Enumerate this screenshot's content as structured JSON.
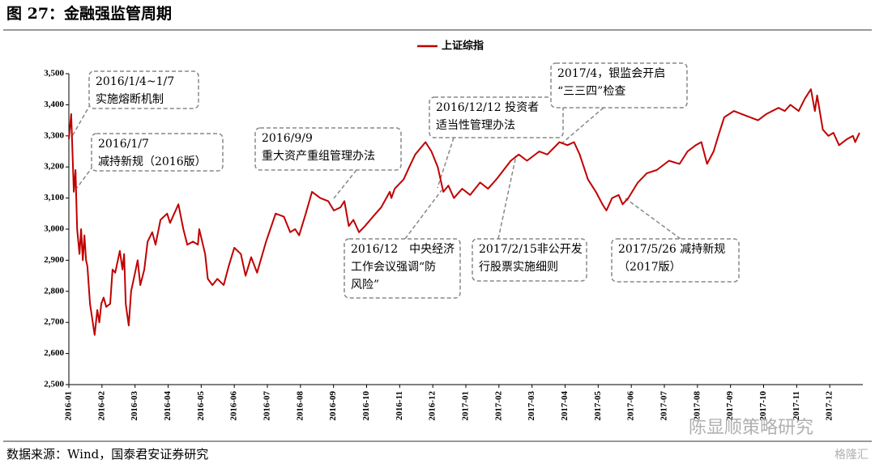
{
  "chart_data": {
    "type": "line",
    "title": "图 27：金融强监管周期",
    "source": "数据来源：Wind，国泰君安证券研究",
    "watermark": [
      "陈显顺策略研究",
      "格隆汇"
    ],
    "legend": "top",
    "xlim": [
      0,
      24
    ],
    "xticks": [
      {
        "value": 0,
        "label": "2016-01"
      },
      {
        "value": 1,
        "label": "2016-02"
      },
      {
        "value": 2,
        "label": "2016-03"
      },
      {
        "value": 3,
        "label": "2016-04"
      },
      {
        "value": 4,
        "label": "2016-05"
      },
      {
        "value": 5,
        "label": "2016-06"
      },
      {
        "value": 6,
        "label": "2016-07"
      },
      {
        "value": 7,
        "label": "2016-08"
      },
      {
        "value": 8,
        "label": "2016-09"
      },
      {
        "value": 9,
        "label": "2016-10"
      },
      {
        "value": 10,
        "label": "2016-11"
      },
      {
        "value": 11,
        "label": "2016-12"
      },
      {
        "value": 12,
        "label": "2017-01"
      },
      {
        "value": 13,
        "label": "2017-02"
      },
      {
        "value": 14,
        "label": "2017-03"
      },
      {
        "value": 15,
        "label": "2017-04"
      },
      {
        "value": 16,
        "label": "2017-05"
      },
      {
        "value": 17,
        "label": "2017-06"
      },
      {
        "value": 18,
        "label": "2017-07"
      },
      {
        "value": 19,
        "label": "2017-08"
      },
      {
        "value": 20,
        "label": "2017-09"
      },
      {
        "value": 21,
        "label": "2017-10"
      },
      {
        "value": 22,
        "label": "2017-11"
      },
      {
        "value": 23,
        "label": "2017-12"
      }
    ],
    "ylim": [
      2500,
      3500
    ],
    "yticks": [
      {
        "value": 2500,
        "label": "2,500"
      },
      {
        "value": 2600,
        "label": "2,600"
      },
      {
        "value": 2700,
        "label": "2,700"
      },
      {
        "value": 2800,
        "label": "2,800"
      },
      {
        "value": 2900,
        "label": "2,900"
      },
      {
        "value": 3000,
        "label": "3,000"
      },
      {
        "value": 3100,
        "label": "3,100"
      },
      {
        "value": 3200,
        "label": "3,200"
      },
      {
        "value": 3300,
        "label": "3,300"
      },
      {
        "value": 3400,
        "label": "3,400"
      },
      {
        "value": 3500,
        "label": "3,500"
      }
    ],
    "annotations": [
      [
        "2016/1/4~1/7",
        "实施熔断机制"
      ],
      [
        "2016/1/7",
        "减持新规（2016版）"
      ],
      [
        "2016/9/9",
        "重大资产重组管理办法"
      ],
      [
        "2016/12/12 投资者",
        "适当性管理办法"
      ],
      [
        "2016/12　中央经济",
        "工作会议强调“防",
        "风险”"
      ],
      [
        "2017/2/15非公开发",
        "行股票实施细则"
      ],
      [
        "2017/4，银监会开启",
        "“三三四”检查"
      ],
      [
        "2017/5/26 减持新规",
        "（2017版）"
      ]
    ],
    "x": [
      0,
      0.07,
      0.15,
      0.2,
      0.25,
      0.32,
      0.37,
      0.42,
      0.47,
      0.52,
      0.56,
      0.64,
      0.78,
      0.86,
      0.92,
      0.98,
      1.05,
      1.13,
      1.25,
      1.32,
      1.4,
      1.54,
      1.62,
      1.67,
      1.72,
      1.81,
      1.88,
      2.0,
      2.08,
      2.16,
      2.28,
      2.38,
      2.52,
      2.62,
      2.77,
      2.97,
      3.06,
      3.31,
      3.46,
      3.58,
      3.75,
      3.9,
      3.94,
      4.12,
      4.2,
      4.34,
      4.49,
      4.68,
      4.83,
      5.0,
      5.2,
      5.34,
      5.51,
      5.69,
      5.96,
      6.25,
      6.5,
      6.69,
      6.84,
      6.96,
      7.16,
      7.35,
      7.6,
      7.84,
      8.01,
      8.21,
      8.33,
      8.46,
      8.6,
      8.77,
      8.95,
      9.19,
      9.44,
      9.7,
      9.75,
      9.85,
      10.12,
      10.29,
      10.47,
      10.78,
      10.96,
      11.15,
      11.32,
      11.47,
      11.64,
      11.89,
      12.13,
      12.43,
      12.67,
      12.92,
      13.36,
      13.6,
      13.85,
      14.22,
      14.46,
      14.83,
      15.07,
      15.27,
      15.44,
      15.69,
      15.93,
      16.13,
      16.25,
      16.42,
      16.62,
      16.74,
      16.91,
      17.2,
      17.47,
      17.77,
      18.14,
      18.46,
      18.7,
      18.95,
      19.12,
      19.29,
      19.49,
      19.63,
      19.81,
      20.1,
      20.34,
      20.59,
      20.83,
      21.08,
      21.45,
      21.64,
      21.81,
      22.06,
      22.25,
      22.43,
      22.55,
      22.62,
      22.79,
      22.96,
      23.11,
      23.28,
      23.53,
      23.7,
      23.77,
      23.9
    ],
    "series": [
      {
        "name": "上证综指",
        "color": "#c00000",
        "values": [
          3290,
          3370,
          3120,
          3190,
          3000,
          2920,
          3000,
          2900,
          2980,
          2900,
          2880,
          2760,
          2660,
          2740,
          2700,
          2760,
          2780,
          2750,
          2760,
          2870,
          2860,
          2930,
          2870,
          2920,
          2760,
          2690,
          2800,
          2860,
          2900,
          2820,
          2870,
          2960,
          2990,
          2950,
          3030,
          3050,
          3020,
          3080,
          3000,
          2950,
          2960,
          2950,
          3000,
          2920,
          2840,
          2820,
          2840,
          2820,
          2880,
          2940,
          2920,
          2850,
          2910,
          2860,
          2960,
          3050,
          3040,
          2990,
          3000,
          2980,
          3050,
          3120,
          3100,
          3090,
          3060,
          3070,
          3090,
          3010,
          3030,
          2990,
          3010,
          3040,
          3070,
          3120,
          3100,
          3130,
          3160,
          3200,
          3240,
          3280,
          3250,
          3200,
          3120,
          3140,
          3100,
          3130,
          3110,
          3150,
          3130,
          3160,
          3220,
          3240,
          3220,
          3250,
          3240,
          3280,
          3270,
          3280,
          3240,
          3160,
          3120,
          3080,
          3060,
          3100,
          3110,
          3080,
          3100,
          3150,
          3180,
          3190,
          3220,
          3210,
          3250,
          3270,
          3280,
          3210,
          3250,
          3300,
          3360,
          3380,
          3370,
          3360,
          3350,
          3370,
          3390,
          3380,
          3400,
          3380,
          3420,
          3450,
          3380,
          3430,
          3320,
          3300,
          3310,
          3270,
          3290,
          3300,
          3280,
          3310
        ]
      }
    ]
  }
}
